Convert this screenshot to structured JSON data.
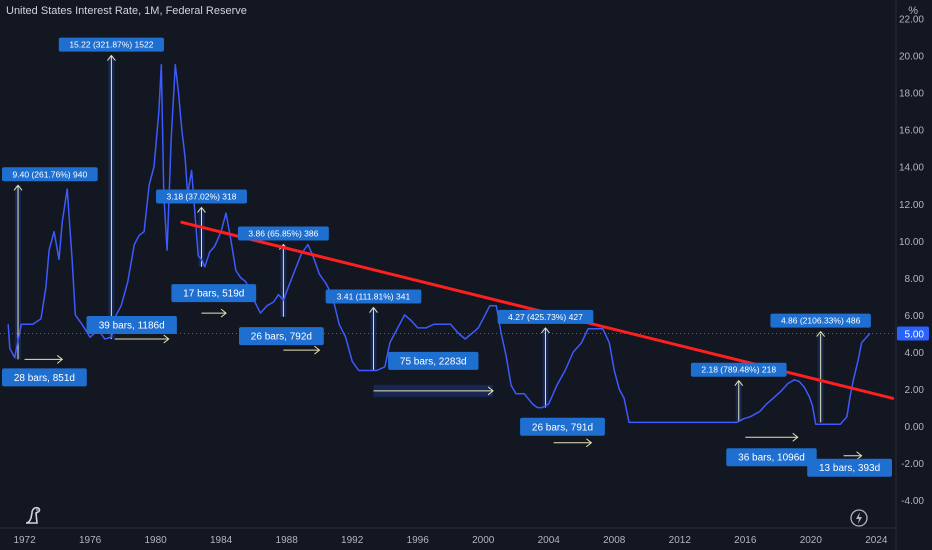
{
  "header": {
    "title": "United States Interest Rate, 1M, Federal Reserve",
    "unit_label": "%"
  },
  "colors": {
    "background": "#131722",
    "line": "#3d5afe",
    "trendline": "#ff1f1f",
    "label_bg": "#1e6fd0",
    "price_tag": "#2962ff",
    "axis_text": "#b2b5be",
    "annotation_arrow": "#e8e6b0"
  },
  "icons": [
    "tradingview-logo-icon",
    "lightning-bolt-icon"
  ],
  "chart_data": {
    "type": "line",
    "title": "United States Interest Rate, 1M, Federal Reserve",
    "xlabel": "",
    "ylabel": "%",
    "xlim": [
      1970.5,
      2025.2
    ],
    "ylim": [
      -5.5,
      23.0
    ],
    "grid": false,
    "x_ticks": [
      "1972",
      "1976",
      "1980",
      "1984",
      "1988",
      "1992",
      "1996",
      "2000",
      "2004",
      "2008",
      "2012",
      "2016",
      "2020",
      "2024"
    ],
    "y_ticks": [
      "-4.00",
      "-2.00",
      "0.00",
      "2.00",
      "4.00",
      "6.00",
      "8.00",
      "10.00",
      "12.00",
      "14.00",
      "16.00",
      "18.00",
      "20.00",
      "22.00"
    ],
    "last_value_label": "5.00",
    "last_value": 5.0,
    "series": [
      {
        "x": [
          1971.0,
          1971.1,
          1971.4,
          1971.6,
          1971.8,
          1972.0,
          1972.5,
          1973.0,
          1973.3,
          1973.5,
          1973.8,
          1974.1,
          1974.3,
          1974.6,
          1974.9,
          1975.1,
          1975.5,
          1976.0,
          1976.5,
          1976.9,
          1977.3,
          1977.6,
          1977.9,
          1978.3,
          1978.7,
          1979.0,
          1979.3,
          1979.6,
          1979.9,
          1980.2,
          1980.35,
          1980.5,
          1980.7,
          1980.95,
          1981.2,
          1981.4,
          1981.6,
          1981.8,
          1981.95,
          1982.2,
          1982.4,
          1982.6,
          1982.8,
          1983.0,
          1983.3,
          1983.6,
          1984.0,
          1984.3,
          1984.6,
          1984.9,
          1985.2,
          1985.5,
          1986.0,
          1986.4,
          1986.8,
          1987.2,
          1987.5,
          1987.8,
          1988.1,
          1988.5,
          1988.9,
          1989.3,
          1989.6,
          1990.0,
          1990.4,
          1990.8,
          1991.2,
          1991.6,
          1992.0,
          1992.4,
          1992.7,
          1993.0,
          1993.5,
          1994.0,
          1994.3,
          1994.6,
          1994.9,
          1995.2,
          1995.6,
          1996.0,
          1996.5,
          1997.0,
          1997.5,
          1998.0,
          1998.5,
          1998.9,
          1999.3,
          1999.7,
          2000.0,
          2000.4,
          2000.8,
          2001.1,
          2001.4,
          2001.7,
          2002.0,
          2002.5,
          2003.0,
          2003.3,
          2003.6,
          2004.0,
          2004.5,
          2005.0,
          2005.5,
          2006.0,
          2006.4,
          2006.8,
          2007.3,
          2007.7,
          2008.0,
          2008.3,
          2008.6,
          2008.9,
          2009.2,
          2010.0,
          2012.0,
          2014.0,
          2015.5,
          2015.9,
          2016.3,
          2016.9,
          2017.3,
          2017.7,
          2018.2,
          2018.6,
          2019.0,
          2019.3,
          2019.6,
          2019.9,
          2020.1,
          2020.3,
          2021.0,
          2021.8,
          2022.2,
          2022.4,
          2022.6,
          2022.9,
          2023.1,
          2023.4,
          2023.6
        ],
        "values": [
          5.5,
          4.2,
          3.7,
          4.6,
          5.5,
          5.5,
          5.5,
          5.8,
          7.5,
          9.5,
          10.5,
          9.0,
          11.0,
          12.8,
          9.0,
          6.0,
          5.5,
          4.8,
          5.2,
          4.7,
          4.8,
          6.0,
          6.5,
          7.8,
          9.8,
          10.3,
          10.5,
          13.0,
          14.0,
          17.0,
          19.5,
          12.5,
          9.5,
          15.5,
          19.5,
          18.0,
          16.0,
          14.5,
          12.5,
          13.8,
          11.5,
          9.2,
          9.0,
          8.6,
          9.4,
          9.7,
          10.5,
          11.5,
          10.0,
          8.4,
          8.0,
          7.8,
          6.8,
          6.1,
          6.5,
          6.7,
          7.1,
          6.8,
          7.5,
          8.4,
          9.3,
          9.8,
          9.2,
          8.2,
          7.7,
          7.0,
          5.5,
          4.8,
          3.5,
          3.0,
          3.0,
          3.0,
          3.0,
          3.2,
          4.5,
          5.0,
          5.5,
          6.0,
          5.7,
          5.3,
          5.3,
          5.5,
          5.5,
          5.5,
          5.0,
          4.7,
          5.0,
          5.3,
          5.8,
          6.5,
          6.5,
          5.0,
          3.8,
          2.2,
          1.75,
          1.75,
          1.2,
          1.0,
          1.0,
          1.2,
          2.2,
          3.0,
          4.0,
          4.5,
          5.25,
          5.25,
          5.25,
          4.5,
          3.0,
          2.0,
          1.5,
          0.2,
          0.2,
          0.2,
          0.2,
          0.2,
          0.2,
          0.4,
          0.5,
          0.8,
          1.2,
          1.5,
          1.9,
          2.3,
          2.5,
          2.4,
          2.1,
          1.6,
          1.1,
          0.1,
          0.1,
          0.1,
          0.5,
          1.6,
          2.5,
          3.6,
          4.5,
          4.8,
          5.0
        ]
      }
    ],
    "trendline": {
      "x": [
        1981.6,
        2025.0
      ],
      "y": [
        11.0,
        1.5
      ]
    },
    "price_measurements": [
      {
        "label": "9.40 (261.76%) 940",
        "x": 1971.6,
        "y1": 3.6,
        "y2": 13.0
      },
      {
        "label": "15.22 (321.87%) 1522",
        "x": 1977.3,
        "y1": 4.7,
        "y2": 20.0
      },
      {
        "label": "3.18 (37.02%) 318",
        "x": 1982.8,
        "y1": 8.6,
        "y2": 11.8
      },
      {
        "label": "3.86 (65.85%) 386",
        "x": 1987.8,
        "y1": 5.9,
        "y2": 9.8
      },
      {
        "label": "3.41 (111.81%) 341",
        "x": 1993.3,
        "y1": 3.0,
        "y2": 6.4
      },
      {
        "label": "4.27 (425.73%) 427",
        "x": 2003.8,
        "y1": 1.0,
        "y2": 5.3
      },
      {
        "label": "2.18 (789.48%) 218",
        "x": 2015.6,
        "y1": 0.25,
        "y2": 2.45
      },
      {
        "label": "4.86 (2106.33%) 486",
        "x": 2020.6,
        "y1": 0.2,
        "y2": 5.1
      }
    ],
    "bar_range_labels": [
      {
        "label": "28 bars, 851d",
        "x1": 1972.0,
        "x2": 1974.3,
        "arrow_y": 3.6
      },
      {
        "label": "39 bars, 1186d",
        "x1": 1977.5,
        "x2": 1980.8,
        "arrow_y": 4.7
      },
      {
        "label": "17 bars, 519d",
        "x1": 1982.8,
        "x2": 1984.3,
        "arrow_y": 6.1
      },
      {
        "label": "26 bars, 792d",
        "x1": 1987.8,
        "x2": 1990.0,
        "arrow_y": 4.1
      },
      {
        "label": "75 bars, 2283d",
        "x1": 1993.3,
        "x2": 2000.6,
        "arrow_y": 1.9
      },
      {
        "label": "26 bars, 791d",
        "x1": 2004.3,
        "x2": 2006.6,
        "arrow_y": -0.9
      },
      {
        "label": "36 bars, 1096d",
        "x1": 2016.0,
        "x2": 2019.2,
        "arrow_y": -0.6
      },
      {
        "label": "13 bars, 393d",
        "x1": 2022.0,
        "x2": 2023.1,
        "arrow_y": -1.6
      }
    ]
  }
}
